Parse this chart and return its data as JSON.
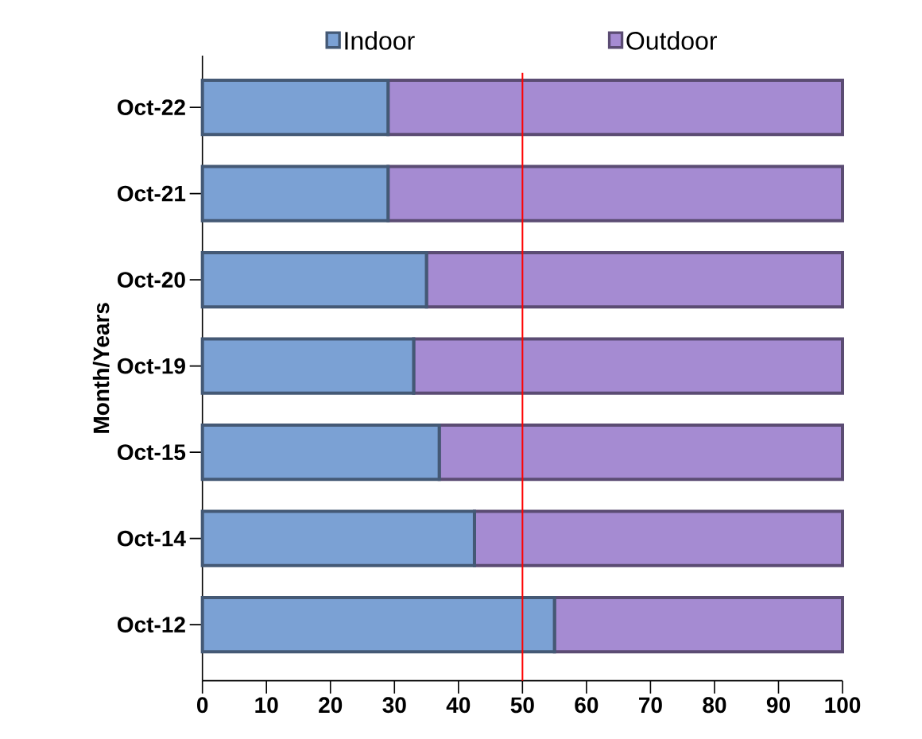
{
  "chart_data": {
    "type": "bar",
    "orientation": "horizontal",
    "stacked": true,
    "ylabel": "Month/Years",
    "categories": [
      "Oct-22",
      "Oct-21",
      "Oct-20",
      "Oct-19",
      "Oct-15",
      "Oct-14",
      "Oct-12"
    ],
    "series": [
      {
        "name": "Indoor",
        "color": "#7ba1d4",
        "values": [
          29,
          29,
          35,
          33,
          37,
          42.5,
          55
        ]
      },
      {
        "name": "Outdoor",
        "color": "#a58bd2",
        "values": [
          71,
          71,
          65,
          67,
          63,
          57.5,
          45
        ]
      }
    ],
    "xlim": [
      0,
      100
    ],
    "xticks": [
      0,
      10,
      20,
      30,
      40,
      50,
      60,
      70,
      80,
      90,
      100
    ],
    "ref_lines": [
      {
        "axis": "x",
        "value": 50,
        "color": "#ff0000"
      }
    ],
    "legend": "top"
  }
}
